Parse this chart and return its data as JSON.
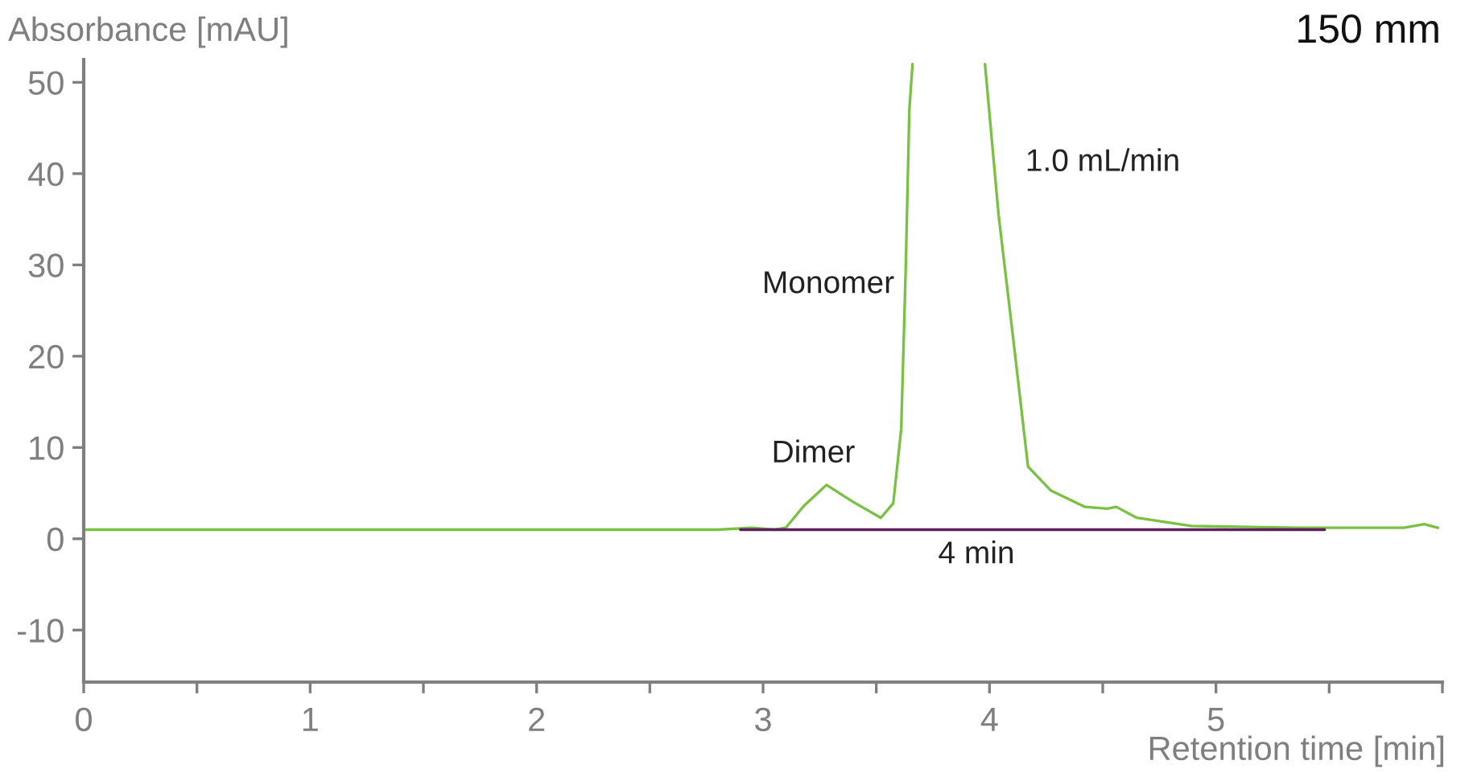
{
  "chart_data": {
    "type": "line",
    "title": "150 mm",
    "xlabel": "Retention time [min]",
    "ylabel": "Absorbance [mAU]",
    "series": [
      {
        "color": "#7ac143",
        "x": [
          0,
          1,
          2,
          2.8,
          2.95,
          3.05,
          3.1,
          3.18,
          3.28,
          3.4,
          3.52,
          3.575,
          3.61,
          3.63,
          3.646,
          3.66,
          3.8,
          3.98,
          4.04,
          4.11,
          4.17,
          4.27,
          4.42,
          4.52,
          4.56,
          4.65,
          4.89,
          5.36,
          5.83,
          5.92,
          5.98
        ],
        "values": [
          1.0,
          1.0,
          1.0,
          1.0,
          1.2,
          1.0,
          1.2,
          3.6,
          5.9,
          4.0,
          2.3,
          3.9,
          12,
          29.6,
          47,
          52,
          null,
          52,
          35.5,
          20.8,
          7.9,
          5.3,
          3.5,
          3.3,
          3.5,
          2.3,
          1.4,
          1.2,
          1.2,
          1.6,
          1.2
        ]
      },
      {
        "color": "#5c1f5c",
        "x": [
          2.9,
          5.48
        ],
        "values": [
          1.0,
          1.0
        ]
      }
    ],
    "annotations": [
      "Monomer",
      "Dimer",
      "1.0 mL/min",
      "4 min"
    ],
    "xlim": [
      0,
      6
    ],
    "ylim": [
      -15.7,
      52.5
    ],
    "xticks": [
      0,
      {
        "value": 0.5,
        "label": null
      },
      1,
      {
        "value": 1.5,
        "label": null
      },
      2,
      {
        "value": 2.5,
        "label": null
      },
      3,
      {
        "value": 3.5,
        "label": null
      },
      4,
      {
        "value": 4.5,
        "label": null
      },
      5,
      {
        "value": 5.5,
        "label": null
      },
      {
        "value": 6,
        "label": null
      }
    ],
    "yticks": [
      -10,
      0,
      10,
      20,
      30,
      40,
      50
    ],
    "grid": false,
    "legend": false
  }
}
